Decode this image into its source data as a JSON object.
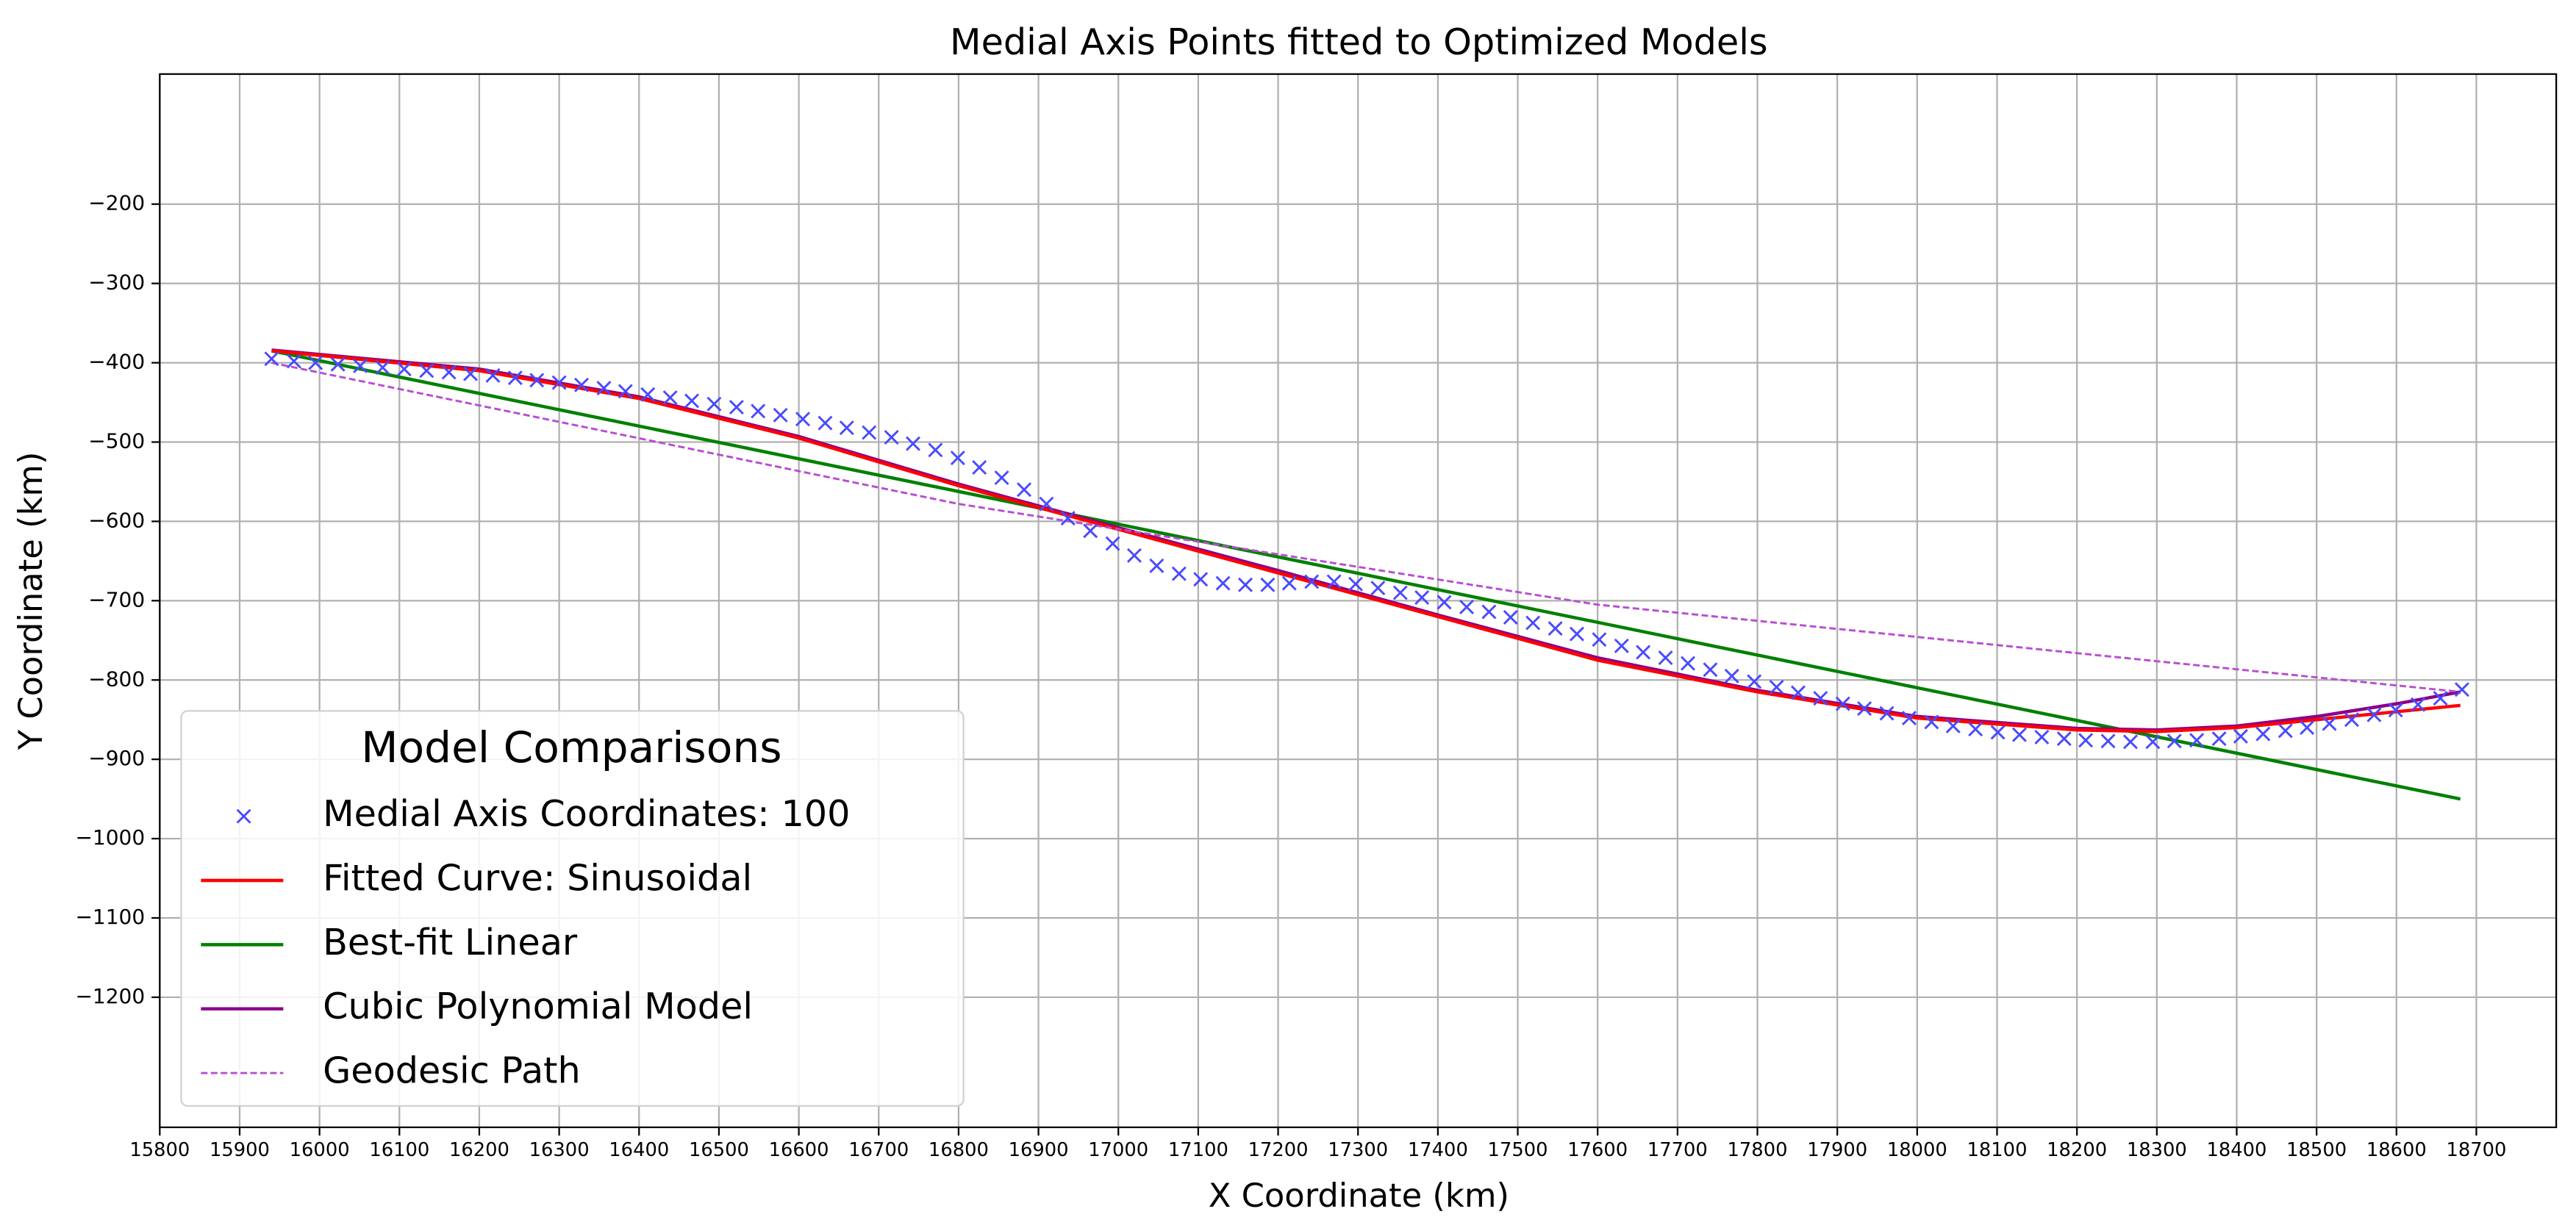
{
  "chart_data": {
    "type": "line",
    "title": "Medial Axis Points fitted to Optimized Models",
    "xlabel": "X Coordinate (km)",
    "ylabel": "Y Coordinate (km)",
    "xlim": [
      15800,
      18800
    ],
    "xticks": [
      15800,
      15900,
      16000,
      16100,
      16200,
      16300,
      16400,
      16500,
      16600,
      16700,
      16800,
      16900,
      17000,
      17100,
      17200,
      17300,
      17400,
      17500,
      17600,
      17700,
      17800,
      17900,
      18000,
      18100,
      18200,
      18300,
      18400,
      18500,
      18600,
      18700
    ],
    "ylim": [
      -1364,
      -36
    ],
    "yticks": [
      {
        "value": -200,
        "label": "−200"
      },
      {
        "value": -300,
        "label": "−300"
      },
      {
        "value": -400,
        "label": "−400"
      },
      {
        "value": -500,
        "label": "−500"
      },
      {
        "value": -600,
        "label": "−600"
      },
      {
        "value": -700,
        "label": "−700"
      },
      {
        "value": -800,
        "label": "−800"
      },
      {
        "value": -900,
        "label": "−900"
      },
      {
        "value": -1000,
        "label": "−1000"
      },
      {
        "value": -1100,
        "label": "−1100"
      },
      {
        "value": -1200,
        "label": "−1200"
      }
    ],
    "grid": true,
    "legend_title": "Model Comparisons",
    "legend_position": "lower-left",
    "series": [
      {
        "name": "Medial Axis Coordinates: 100",
        "color": "#4a4aff",
        "mark": "x",
        "x": [
          15940,
          15968,
          15995,
          16023,
          16051,
          16079,
          16106,
          16134,
          16162,
          16189,
          16217,
          16245,
          16272,
          16300,
          16328,
          16356,
          16383,
          16411,
          16439,
          16466,
          16494,
          16522,
          16549,
          16577,
          16605,
          16633,
          16660,
          16688,
          16716,
          16743,
          16771,
          16799,
          16826,
          16854,
          16882,
          16910,
          16937,
          16965,
          16993,
          17020,
          17048,
          17076,
          17103,
          17131,
          17159,
          17187,
          17214,
          17242,
          17270,
          17297,
          17325,
          17353,
          17380,
          17408,
          17436,
          17464,
          17491,
          17519,
          17547,
          17574,
          17602,
          17630,
          17657,
          17685,
          17713,
          17741,
          17768,
          17796,
          17824,
          17851,
          17879,
          17907,
          17934,
          17962,
          17990,
          18018,
          18045,
          18073,
          18101,
          18128,
          18156,
          18184,
          18211,
          18239,
          18267,
          18295,
          18322,
          18350,
          18378,
          18405,
          18433,
          18461,
          18488,
          18516,
          18544,
          18572,
          18599,
          18627,
          18655,
          18682
        ],
        "values": [
          -395,
          -398,
          -400,
          -402,
          -404,
          -406,
          -408,
          -410,
          -412,
          -414,
          -416,
          -419,
          -422,
          -425,
          -428,
          -432,
          -436,
          -440,
          -444,
          -448,
          -452,
          -456,
          -461,
          -466,
          -471,
          -476,
          -482,
          -488,
          -494,
          -502,
          -510,
          -520,
          -532,
          -545,
          -560,
          -578,
          -596,
          -612,
          -628,
          -643,
          -656,
          -666,
          -673,
          -678,
          -680,
          -680,
          -678,
          -676,
          -676,
          -679,
          -684,
          -690,
          -696,
          -702,
          -708,
          -714,
          -721,
          -728,
          -735,
          -742,
          -749,
          -757,
          -765,
          -772,
          -779,
          -787,
          -795,
          -802,
          -809,
          -816,
          -823,
          -830,
          -836,
          -842,
          -848,
          -853,
          -858,
          -862,
          -866,
          -869,
          -872,
          -874,
          -876,
          -877,
          -878,
          -878,
          -877,
          -876,
          -874,
          -871,
          -868,
          -864,
          -860,
          -855,
          -850,
          -844,
          -838,
          -831,
          -823,
          -812
        ]
      },
      {
        "name": "Fitted Curve: Sinusoidal",
        "color": "#ff0000",
        "mark": "line",
        "x": [
          15940,
          16200,
          16400,
          16600,
          16800,
          17000,
          17200,
          17400,
          17600,
          17800,
          18000,
          18200,
          18300,
          18400,
          18500,
          18600,
          18680
        ],
        "values": [
          -385,
          -410,
          -445,
          -495,
          -555,
          -610,
          -665,
          -720,
          -775,
          -815,
          -848,
          -863,
          -865,
          -860,
          -850,
          -840,
          -832
        ]
      },
      {
        "name": "Best-fit Linear",
        "color": "#008000",
        "mark": "line",
        "x": [
          15940,
          18680
        ],
        "values": [
          -385,
          -950
        ]
      },
      {
        "name": "Cubic Polynomial Model",
        "color": "#8b008b",
        "mark": "line",
        "x": [
          15940,
          16200,
          16400,
          16600,
          16800,
          17000,
          17200,
          17400,
          17600,
          17800,
          18000,
          18200,
          18300,
          18400,
          18500,
          18600,
          18680
        ],
        "values": [
          -384,
          -408,
          -443,
          -493,
          -553,
          -608,
          -662,
          -718,
          -772,
          -813,
          -846,
          -861,
          -863,
          -858,
          -846,
          -830,
          -815
        ]
      },
      {
        "name": "Geodesic Path",
        "color": "#b84dd1",
        "mark": "dashed",
        "x": [
          15940,
          16800,
          17600,
          18680
        ],
        "values": [
          -400,
          -578,
          -705,
          -815
        ]
      }
    ]
  }
}
